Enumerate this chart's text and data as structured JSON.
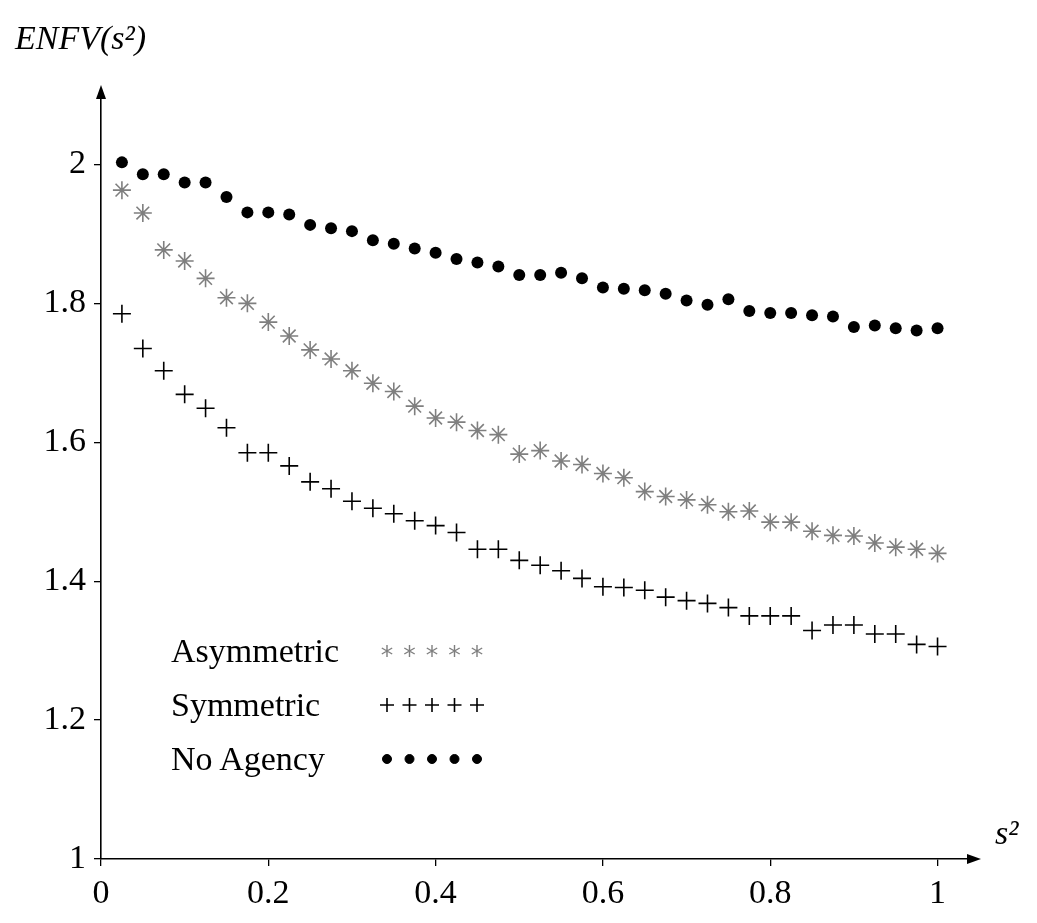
{
  "chart_data": {
    "type": "scatter",
    "xlabel": "s²",
    "ylabel": "ENFV(s²)",
    "x": [
      0.025,
      0.05,
      0.075,
      0.1,
      0.125,
      0.15,
      0.175,
      0.2,
      0.225,
      0.25,
      0.275,
      0.3,
      0.325,
      0.35,
      0.375,
      0.4,
      0.425,
      0.45,
      0.475,
      0.5,
      0.525,
      0.55,
      0.575,
      0.6,
      0.625,
      0.65,
      0.675,
      0.7,
      0.725,
      0.75,
      0.775,
      0.8,
      0.825,
      0.85,
      0.875,
      0.9,
      0.925,
      0.95,
      0.975,
      1.0
    ],
    "series": [
      {
        "name": "Asymmetric",
        "color": "#7f7f7f",
        "values": [
          1.963,
          1.93,
          1.877,
          1.861,
          1.836,
          1.808,
          1.8,
          1.773,
          1.753,
          1.733,
          1.72,
          1.703,
          1.685,
          1.673,
          1.652,
          1.635,
          1.629,
          1.617,
          1.611,
          1.583,
          1.588,
          1.573,
          1.568,
          1.555,
          1.549,
          1.529,
          1.522,
          1.517,
          1.51,
          1.5,
          1.501,
          1.485,
          1.485,
          1.472,
          1.466,
          1.465,
          1.455,
          1.449,
          1.446,
          1.44
        ]
      },
      {
        "name": "Symmetric",
        "color": "#000000",
        "marker": "cross",
        "values": [
          1.785,
          1.735,
          1.703,
          1.669,
          1.649,
          1.621,
          1.585,
          1.585,
          1.566,
          1.543,
          1.533,
          1.515,
          1.505,
          1.497,
          1.487,
          1.48,
          1.47,
          1.446,
          1.446,
          1.43,
          1.423,
          1.415,
          1.404,
          1.392,
          1.391,
          1.387,
          1.377,
          1.372,
          1.368,
          1.362,
          1.35,
          1.35,
          1.35,
          1.329,
          1.337,
          1.337,
          1.324,
          1.324,
          1.309,
          1.306
        ]
      },
      {
        "name": "No Agency",
        "color": "#000000",
        "marker": "circle",
        "values": [
          2.003,
          1.986,
          1.986,
          1.974,
          1.974,
          1.953,
          1.931,
          1.931,
          1.928,
          1.913,
          1.908,
          1.904,
          1.891,
          1.886,
          1.879,
          1.873,
          1.864,
          1.859,
          1.853,
          1.841,
          1.841,
          1.844,
          1.836,
          1.823,
          1.821,
          1.819,
          1.814,
          1.804,
          1.798,
          1.806,
          1.789,
          1.786,
          1.786,
          1.783,
          1.781,
          1.766,
          1.768,
          1.764,
          1.761,
          1.764
        ]
      }
    ],
    "xlim": [
      0,
      1.04
    ],
    "ylim": [
      1,
      2.1
    ],
    "xticks": [
      0,
      0.2,
      0.4,
      0.6,
      0.8,
      1
    ],
    "yticks": [
      1,
      1.2,
      1.4,
      1.6,
      1.8,
      2
    ],
    "grid": false,
    "legend": "bottom left"
  }
}
